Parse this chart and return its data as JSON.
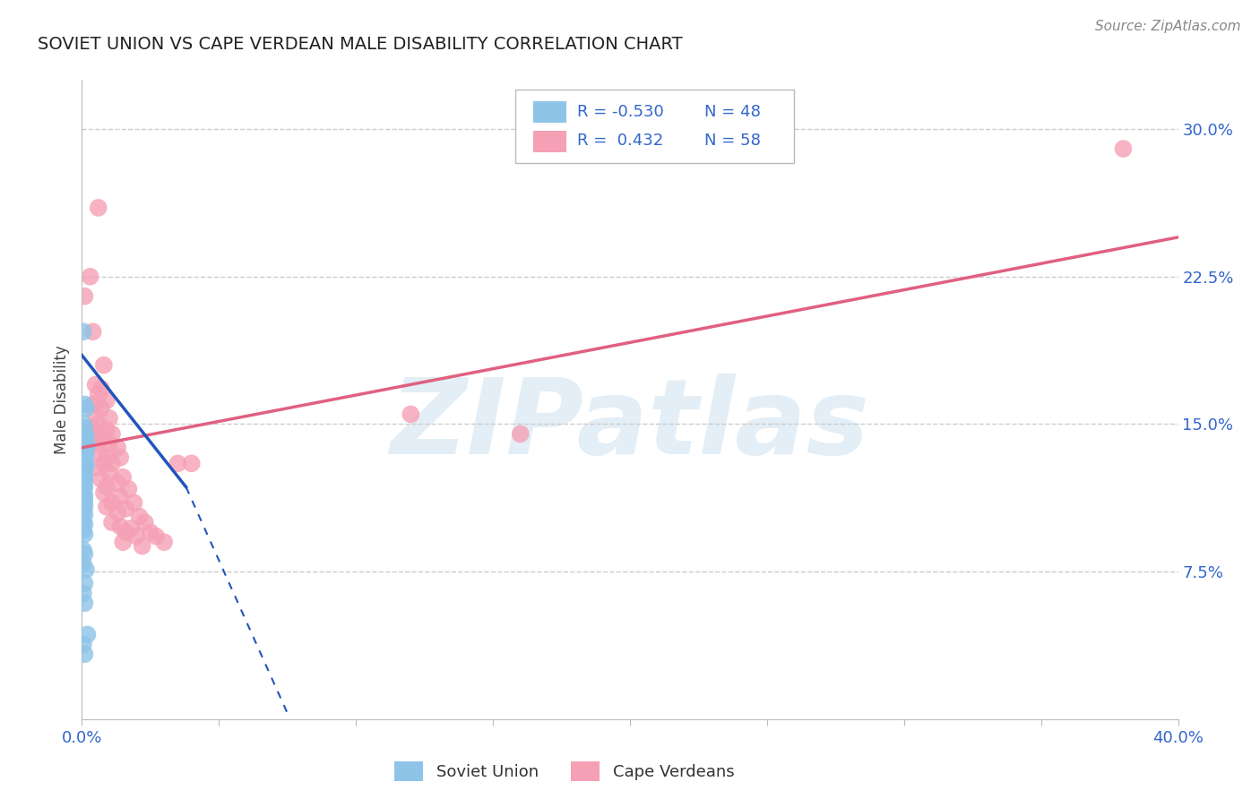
{
  "title": "SOVIET UNION VS CAPE VERDEAN MALE DISABILITY CORRELATION CHART",
  "source": "Source: ZipAtlas.com",
  "ylabel": "Male Disability",
  "xlim": [
    0.0,
    0.4
  ],
  "ylim": [
    0.0,
    0.325
  ],
  "xticks": [
    0.0,
    0.05,
    0.1,
    0.15,
    0.2,
    0.25,
    0.3,
    0.35,
    0.4
  ],
  "ytick_vals": [
    0.0,
    0.075,
    0.15,
    0.225,
    0.3
  ],
  "ytick_labels": [
    "",
    "7.5%",
    "15.0%",
    "22.5%",
    "30.0%"
  ],
  "grid_color": "#cccccc",
  "background_color": "#ffffff",
  "watermark": "ZIPatlas",
  "legend_r1": "-0.530",
  "legend_n1": "48",
  "legend_r2": "0.432",
  "legend_n2": "58",
  "soviet_color": "#8ec4e8",
  "cape_color": "#f5a0b5",
  "soviet_line_color": "#2255bb",
  "cape_line_color": "#e06080",
  "soviet_dots": [
    [
      0.0005,
      0.197
    ],
    [
      0.001,
      0.16
    ],
    [
      0.0015,
      0.158
    ],
    [
      0.0005,
      0.15
    ],
    [
      0.001,
      0.148
    ],
    [
      0.0005,
      0.145
    ],
    [
      0.0015,
      0.144
    ],
    [
      0.001,
      0.142
    ],
    [
      0.0005,
      0.14
    ],
    [
      0.002,
      0.139
    ],
    [
      0.001,
      0.137
    ],
    [
      0.0005,
      0.134
    ],
    [
      0.0015,
      0.134
    ],
    [
      0.0005,
      0.131
    ],
    [
      0.001,
      0.131
    ],
    [
      0.0005,
      0.129
    ],
    [
      0.001,
      0.129
    ],
    [
      0.0015,
      0.129
    ],
    [
      0.0005,
      0.126
    ],
    [
      0.001,
      0.126
    ],
    [
      0.0005,
      0.124
    ],
    [
      0.001,
      0.123
    ],
    [
      0.0005,
      0.121
    ],
    [
      0.001,
      0.121
    ],
    [
      0.0005,
      0.119
    ],
    [
      0.001,
      0.118
    ],
    [
      0.0005,
      0.116
    ],
    [
      0.001,
      0.114
    ],
    [
      0.0005,
      0.111
    ],
    [
      0.001,
      0.111
    ],
    [
      0.0005,
      0.109
    ],
    [
      0.001,
      0.108
    ],
    [
      0.0005,
      0.106
    ],
    [
      0.001,
      0.104
    ],
    [
      0.0005,
      0.101
    ],
    [
      0.001,
      0.099
    ],
    [
      0.0005,
      0.096
    ],
    [
      0.001,
      0.094
    ],
    [
      0.0005,
      0.086
    ],
    [
      0.001,
      0.084
    ],
    [
      0.0005,
      0.079
    ],
    [
      0.0015,
      0.076
    ],
    [
      0.001,
      0.069
    ],
    [
      0.0005,
      0.064
    ],
    [
      0.001,
      0.059
    ],
    [
      0.002,
      0.043
    ],
    [
      0.0005,
      0.038
    ],
    [
      0.001,
      0.033
    ]
  ],
  "cape_dots": [
    [
      0.001,
      0.215
    ],
    [
      0.004,
      0.197
    ],
    [
      0.006,
      0.26
    ],
    [
      0.003,
      0.225
    ],
    [
      0.008,
      0.18
    ],
    [
      0.005,
      0.17
    ],
    [
      0.007,
      0.168
    ],
    [
      0.006,
      0.165
    ],
    [
      0.009,
      0.162
    ],
    [
      0.004,
      0.16
    ],
    [
      0.007,
      0.158
    ],
    [
      0.005,
      0.155
    ],
    [
      0.01,
      0.153
    ],
    [
      0.006,
      0.15
    ],
    [
      0.004,
      0.148
    ],
    [
      0.009,
      0.147
    ],
    [
      0.006,
      0.145
    ],
    [
      0.011,
      0.145
    ],
    [
      0.008,
      0.143
    ],
    [
      0.005,
      0.14
    ],
    [
      0.01,
      0.14
    ],
    [
      0.013,
      0.138
    ],
    [
      0.007,
      0.135
    ],
    [
      0.009,
      0.133
    ],
    [
      0.014,
      0.133
    ],
    [
      0.008,
      0.13
    ],
    [
      0.011,
      0.13
    ],
    [
      0.005,
      0.128
    ],
    [
      0.01,
      0.125
    ],
    [
      0.015,
      0.123
    ],
    [
      0.007,
      0.122
    ],
    [
      0.013,
      0.12
    ],
    [
      0.009,
      0.118
    ],
    [
      0.017,
      0.117
    ],
    [
      0.008,
      0.115
    ],
    [
      0.014,
      0.113
    ],
    [
      0.011,
      0.11
    ],
    [
      0.019,
      0.11
    ],
    [
      0.009,
      0.108
    ],
    [
      0.016,
      0.107
    ],
    [
      0.013,
      0.105
    ],
    [
      0.021,
      0.103
    ],
    [
      0.011,
      0.1
    ],
    [
      0.023,
      0.1
    ],
    [
      0.014,
      0.098
    ],
    [
      0.018,
      0.097
    ],
    [
      0.025,
      0.095
    ],
    [
      0.016,
      0.095
    ],
    [
      0.02,
      0.093
    ],
    [
      0.027,
      0.093
    ],
    [
      0.015,
      0.09
    ],
    [
      0.03,
      0.09
    ],
    [
      0.022,
      0.088
    ],
    [
      0.035,
      0.13
    ],
    [
      0.04,
      0.13
    ],
    [
      0.12,
      0.155
    ],
    [
      0.16,
      0.145
    ],
    [
      0.38,
      0.29
    ]
  ],
  "soviet_line_solid": [
    [
      0.0,
      0.185
    ],
    [
      0.038,
      0.118
    ]
  ],
  "soviet_line_dashed": [
    [
      0.038,
      0.118
    ],
    [
      0.075,
      0.003
    ]
  ],
  "cape_line": [
    [
      0.0,
      0.138
    ],
    [
      0.4,
      0.245
    ]
  ]
}
